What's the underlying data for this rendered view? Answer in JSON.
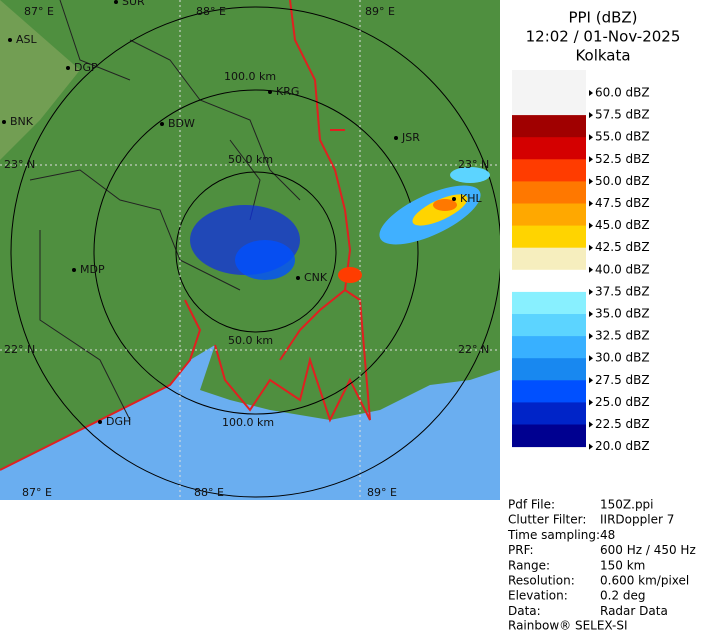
{
  "header": {
    "title": "PPI (dBZ)",
    "time": "12:02 / 01-Nov-2025",
    "location": "Kolkata"
  },
  "legend": {
    "labels": [
      "60.0 dBZ",
      "57.5 dBZ",
      "55.0 dBZ",
      "52.5 dBZ",
      "50.0 dBZ",
      "47.5 dBZ",
      "45.0 dBZ",
      "42.5 dBZ",
      "40.0 dBZ",
      "37.5 dBZ",
      "35.0 dBZ",
      "32.5 dBZ",
      "30.0 dBZ",
      "27.5 dBZ",
      "25.0 dBZ",
      "22.5 dBZ",
      "20.0 dBZ"
    ],
    "colors": [
      "#f4f4f4",
      "#a00000",
      "#d40000",
      "#ff3c00",
      "#ff7800",
      "#ffa800",
      "#ffd400",
      "#f6eebe",
      "#ffffff",
      "#88f0ff",
      "#5cd4ff",
      "#38b0ff",
      "#1888f0",
      "#0050ff",
      "#0024c8",
      "#000090"
    ]
  },
  "map": {
    "places": [
      "SUR",
      "ASL",
      "DGP",
      "BNK",
      "BDW",
      "KRG",
      "JSR",
      "KHL",
      "MDP",
      "CNK",
      "DGH"
    ],
    "range_labels": [
      "100.0 km",
      "50.0 km",
      "50.0 km",
      "100.0 km"
    ],
    "grid_labels": [
      "87° E",
      "88° E",
      "89° E",
      "23° N",
      "23° N",
      "22° N",
      "22° N",
      "87° E",
      "88° E",
      "89° E"
    ]
  },
  "info": {
    "rows": [
      [
        "Pdf File:",
        "150Z.ppi"
      ],
      [
        "Clutter Filter:",
        "IIRDoppler 7"
      ],
      [
        "Time sampling:",
        "48"
      ],
      [
        "PRF:",
        "600 Hz / 450 Hz"
      ],
      [
        "Range:",
        "150 km"
      ],
      [
        "Resolution:",
        "0.600 km/pixel"
      ],
      [
        "Elevation:",
        "0.2 deg"
      ],
      [
        "Data:",
        "Radar Data"
      ]
    ],
    "footer": "Rainbow® SELEX-SI"
  }
}
